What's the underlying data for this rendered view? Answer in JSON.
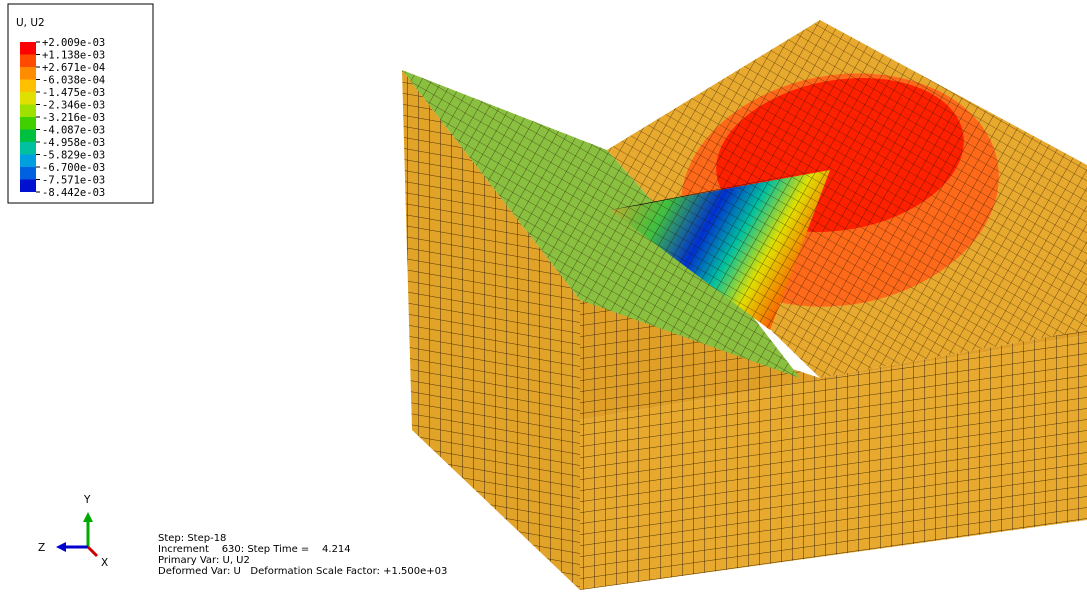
{
  "legend": {
    "title": "U, U2",
    "labels": [
      "+2.009e-03",
      "+1.138e-03",
      "+2.671e-04",
      "-6.038e-04",
      "-1.475e-03",
      "-2.346e-03",
      "-3.216e-03",
      "-4.087e-03",
      "-4.958e-03",
      "-5.829e-03",
      "-6.700e-03",
      "-7.571e-03",
      "-8.442e-03"
    ],
    "colors": [
      "#ff0000",
      "#ff4a00",
      "#ff8c00",
      "#ffc000",
      "#e0e000",
      "#9ee000",
      "#40d000",
      "#00c040",
      "#00c0a0",
      "#00a0e0",
      "#0060e0",
      "#0010d0"
    ]
  },
  "triad": {
    "y": "Y",
    "z": "Z",
    "x": "X"
  },
  "status": {
    "lines": [
      "Step: Step-18",
      "Increment    630: Step Time =    4.214",
      "Primary Var: U, U2",
      "Deformed Var: U   Deformation Scale Factor: +1.500e+03"
    ]
  }
}
